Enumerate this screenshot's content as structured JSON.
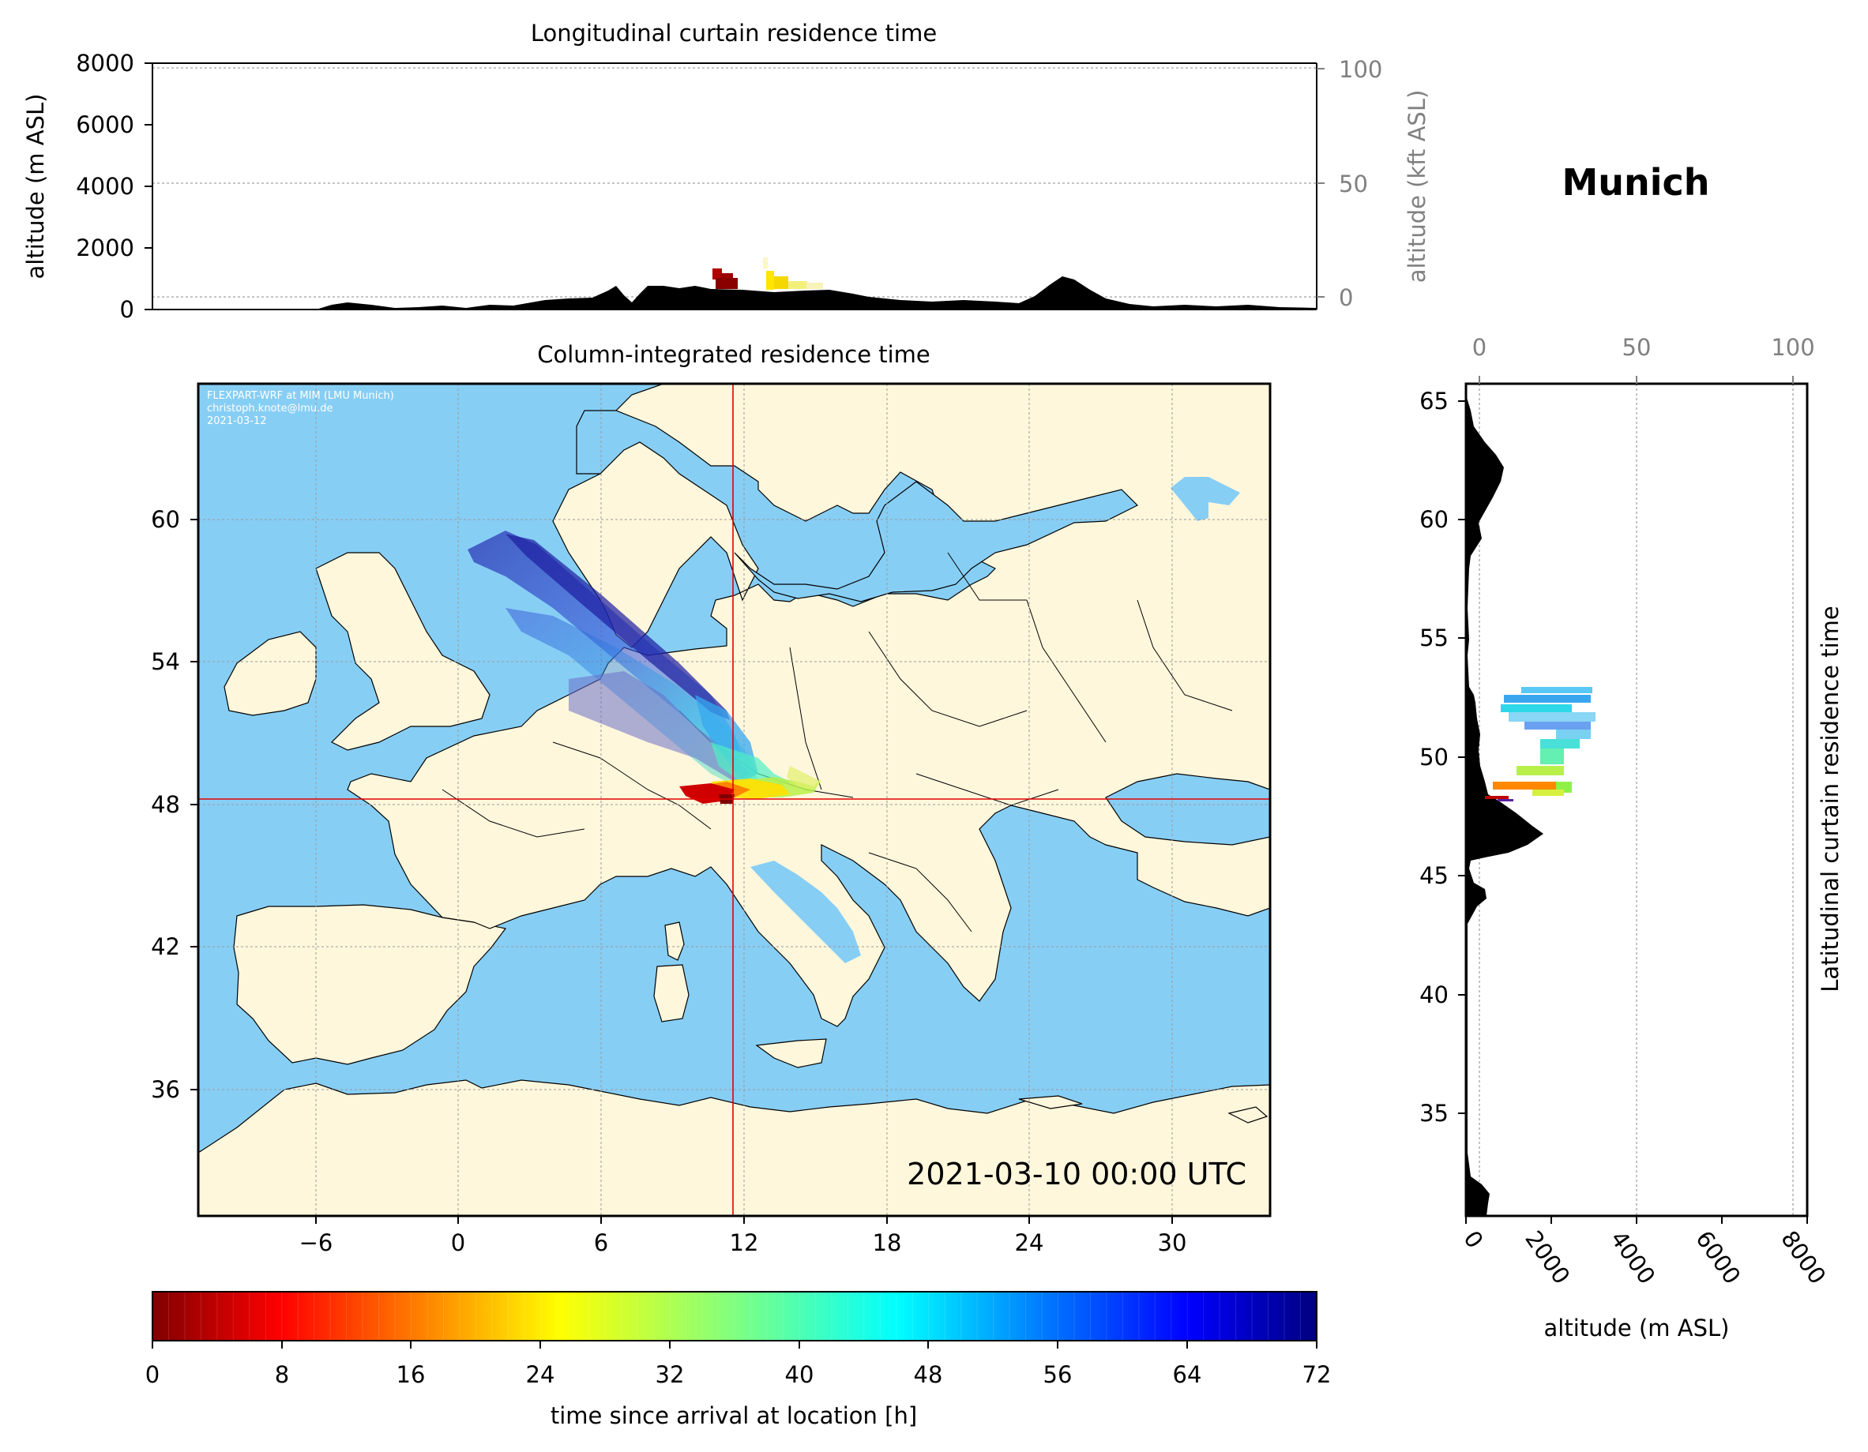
{
  "station": "Munich",
  "top_panel": {
    "title": "Longitudinal curtain residence time",
    "ylabel_left": "altitude (m ASL)",
    "ylabel_right": "altitude (kft ASL)",
    "left_ticks": [
      "0",
      "2000",
      "4000",
      "6000",
      "8000"
    ],
    "right_ticks": [
      "0",
      "50",
      "100"
    ]
  },
  "map_panel": {
    "title": "Column-integrated residence time",
    "credit_lines": [
      "FLEXPART-WRF at MIM (LMU Munich)",
      "christoph.knote@lmu.de",
      "2021-03-12"
    ],
    "timestamp": "2021-03-10 00:00 UTC",
    "x_ticks": [
      "−6",
      "0",
      "6",
      "12",
      "18",
      "24",
      "30"
    ],
    "y_ticks": [
      "60",
      "54",
      "48",
      "42",
      "36"
    ],
    "site_lon": 11.6,
    "site_lat": 48.15,
    "extent": {
      "lon": [
        -11,
        34
      ],
      "lat": [
        30,
        65
      ]
    }
  },
  "side_panel": {
    "ylabel": "Latitudinal curtain residence time",
    "xlabel": "altitude (m ASL)",
    "top_ticks": [
      "0",
      "50",
      "100"
    ],
    "bottom_ticks": [
      "0",
      "2000",
      "4000",
      "6000",
      "8000"
    ],
    "lat_ticks": [
      "65",
      "60",
      "55",
      "50",
      "45",
      "40",
      "35"
    ]
  },
  "colorbar": {
    "label": "time since arrival at location [h]",
    "ticks": [
      "0",
      "8",
      "16",
      "24",
      "32",
      "40",
      "48",
      "56",
      "64",
      "72"
    ],
    "range": [
      0,
      72
    ],
    "colormap": "jet_reversed"
  },
  "colors": {
    "sea": "#87CEF5",
    "land": "#FFF7DC",
    "site_marker": "#E00000",
    "terrain": "#000000"
  }
}
